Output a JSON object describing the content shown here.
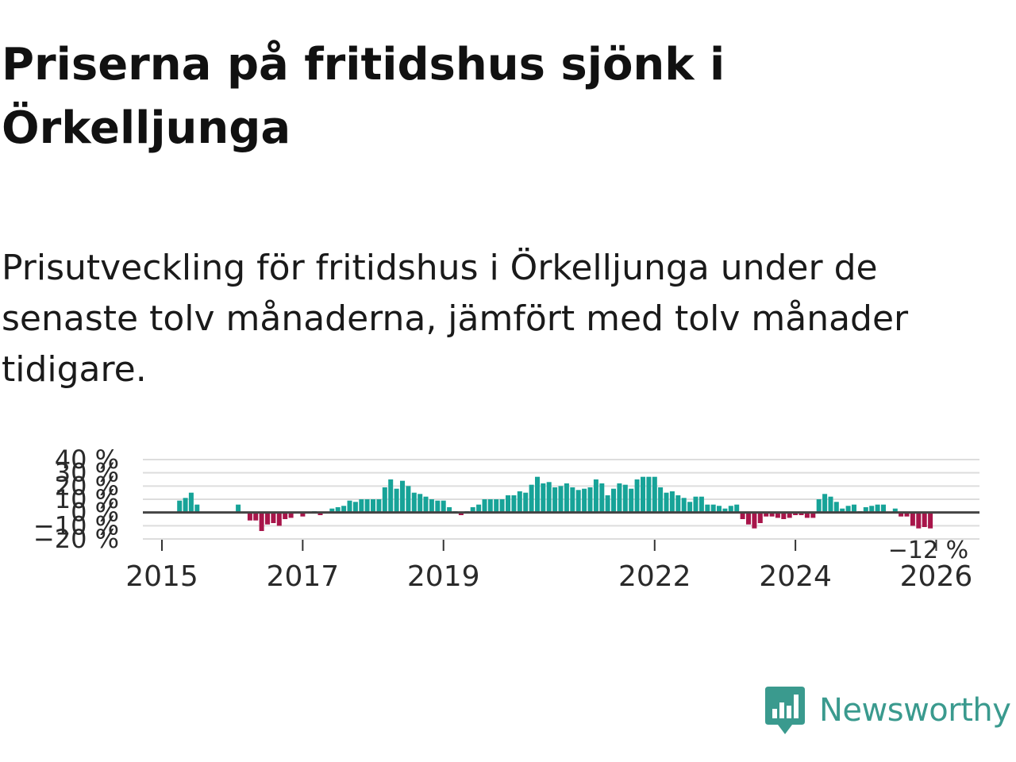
{
  "header": {
    "title": "Priserna på fritidshus sjönk i Örkelljunga",
    "subtitle": "Prisutveckling för fritidshus i Örkelljunga under de senaste tolv månaderna, jämfört med tolv månader tidigare."
  },
  "brand": {
    "name": "Newsworthy",
    "icon": "newsworthy-logo-icon",
    "color": "#3a9a8e"
  },
  "chart_data": {
    "type": "bar",
    "title": "",
    "xlabel": "",
    "ylabel": "",
    "ylim": [
      -20,
      40
    ],
    "yticks": [
      -20,
      -10,
      0,
      10,
      20,
      30,
      40
    ],
    "ytick_labels": [
      "−20 %",
      "−10 %",
      "0 %",
      "10 %",
      "20 %",
      "30 %",
      "40 %"
    ],
    "xtick_labels": [
      "2015",
      "2017",
      "2019",
      "2022",
      "2024",
      "2026"
    ],
    "xtick_dates": [
      "2015-01",
      "2017-01",
      "2019-01",
      "2022-01",
      "2024-01",
      "2026-01"
    ],
    "grid": true,
    "colors": {
      "positive": "#17a398",
      "negative": "#a8154a",
      "grid": "#dddddd",
      "zero_line": "#444444"
    },
    "last_value_label": "−12 %",
    "series": [
      {
        "values": [
          [
            "2015-04",
            9
          ],
          [
            "2015-05",
            11
          ],
          [
            "2015-06",
            15
          ],
          [
            "2015-07",
            6
          ],
          [
            "2016-02",
            6
          ],
          [
            "2016-04",
            -6
          ],
          [
            "2016-05",
            -6
          ],
          [
            "2016-06",
            -14
          ],
          [
            "2016-07",
            -9
          ],
          [
            "2016-08",
            -8
          ],
          [
            "2016-09",
            -10
          ],
          [
            "2016-10",
            -5
          ],
          [
            "2016-11",
            -4
          ],
          [
            "2017-01",
            -3
          ],
          [
            "2017-03",
            1
          ],
          [
            "2017-04",
            -2
          ],
          [
            "2017-06",
            3
          ],
          [
            "2017-07",
            4
          ],
          [
            "2017-08",
            5
          ],
          [
            "2017-09",
            9
          ],
          [
            "2017-10",
            8
          ],
          [
            "2017-11",
            10
          ],
          [
            "2017-12",
            10
          ],
          [
            "2018-01",
            10
          ],
          [
            "2018-02",
            10
          ],
          [
            "2018-03",
            19
          ],
          [
            "2018-04",
            25
          ],
          [
            "2018-05",
            18
          ],
          [
            "2018-06",
            24
          ],
          [
            "2018-07",
            20
          ],
          [
            "2018-08",
            15
          ],
          [
            "2018-09",
            14
          ],
          [
            "2018-10",
            12
          ],
          [
            "2018-11",
            10
          ],
          [
            "2018-12",
            9
          ],
          [
            "2019-01",
            9
          ],
          [
            "2019-02",
            4
          ],
          [
            "2019-03",
            1
          ],
          [
            "2019-04",
            -2
          ],
          [
            "2019-05",
            1
          ],
          [
            "2019-06",
            4
          ],
          [
            "2019-07",
            6
          ],
          [
            "2019-08",
            10
          ],
          [
            "2019-09",
            10
          ],
          [
            "2019-10",
            10
          ],
          [
            "2019-11",
            10
          ],
          [
            "2019-12",
            13
          ],
          [
            "2020-01",
            13
          ],
          [
            "2020-02",
            16
          ],
          [
            "2020-03",
            15
          ],
          [
            "2020-04",
            21
          ],
          [
            "2020-05",
            27
          ],
          [
            "2020-06",
            22
          ],
          [
            "2020-07",
            23
          ],
          [
            "2020-08",
            19
          ],
          [
            "2020-09",
            20
          ],
          [
            "2020-10",
            22
          ],
          [
            "2020-11",
            19
          ],
          [
            "2020-12",
            17
          ],
          [
            "2021-01",
            18
          ],
          [
            "2021-02",
            19
          ],
          [
            "2021-03",
            25
          ],
          [
            "2021-04",
            22
          ],
          [
            "2021-05",
            13
          ],
          [
            "2021-06",
            18
          ],
          [
            "2021-07",
            22
          ],
          [
            "2021-08",
            21
          ],
          [
            "2021-09",
            18
          ],
          [
            "2021-10",
            25
          ],
          [
            "2021-11",
            27
          ],
          [
            "2021-12",
            27
          ],
          [
            "2022-01",
            27
          ],
          [
            "2022-02",
            19
          ],
          [
            "2022-03",
            15
          ],
          [
            "2022-04",
            16
          ],
          [
            "2022-05",
            13
          ],
          [
            "2022-06",
            11
          ],
          [
            "2022-07",
            8
          ],
          [
            "2022-08",
            12
          ],
          [
            "2022-09",
            12
          ],
          [
            "2022-10",
            6
          ],
          [
            "2022-11",
            6
          ],
          [
            "2022-12",
            5
          ],
          [
            "2023-01",
            3
          ],
          [
            "2023-02",
            5
          ],
          [
            "2023-03",
            6
          ],
          [
            "2023-04",
            -5
          ],
          [
            "2023-05",
            -9
          ],
          [
            "2023-06",
            -12
          ],
          [
            "2023-07",
            -8
          ],
          [
            "2023-08",
            -3
          ],
          [
            "2023-09",
            -3
          ],
          [
            "2023-10",
            -4
          ],
          [
            "2023-11",
            -5
          ],
          [
            "2023-12",
            -4
          ],
          [
            "2024-01",
            -2
          ],
          [
            "2024-02",
            -2
          ],
          [
            "2024-03",
            -4
          ],
          [
            "2024-04",
            -4
          ],
          [
            "2024-05",
            10
          ],
          [
            "2024-06",
            14
          ],
          [
            "2024-07",
            12
          ],
          [
            "2024-08",
            8
          ],
          [
            "2024-09",
            3
          ],
          [
            "2024-10",
            5
          ],
          [
            "2024-11",
            6
          ],
          [
            "2024-12",
            1
          ],
          [
            "2025-01",
            4
          ],
          [
            "2025-02",
            5
          ],
          [
            "2025-03",
            6
          ],
          [
            "2025-04",
            6
          ],
          [
            "2025-06",
            3
          ],
          [
            "2025-07",
            -3
          ],
          [
            "2025-08",
            -3
          ],
          [
            "2025-09",
            -10
          ],
          [
            "2025-10",
            -12
          ],
          [
            "2025-11",
            -11
          ],
          [
            "2025-12",
            -12
          ]
        ]
      }
    ]
  }
}
